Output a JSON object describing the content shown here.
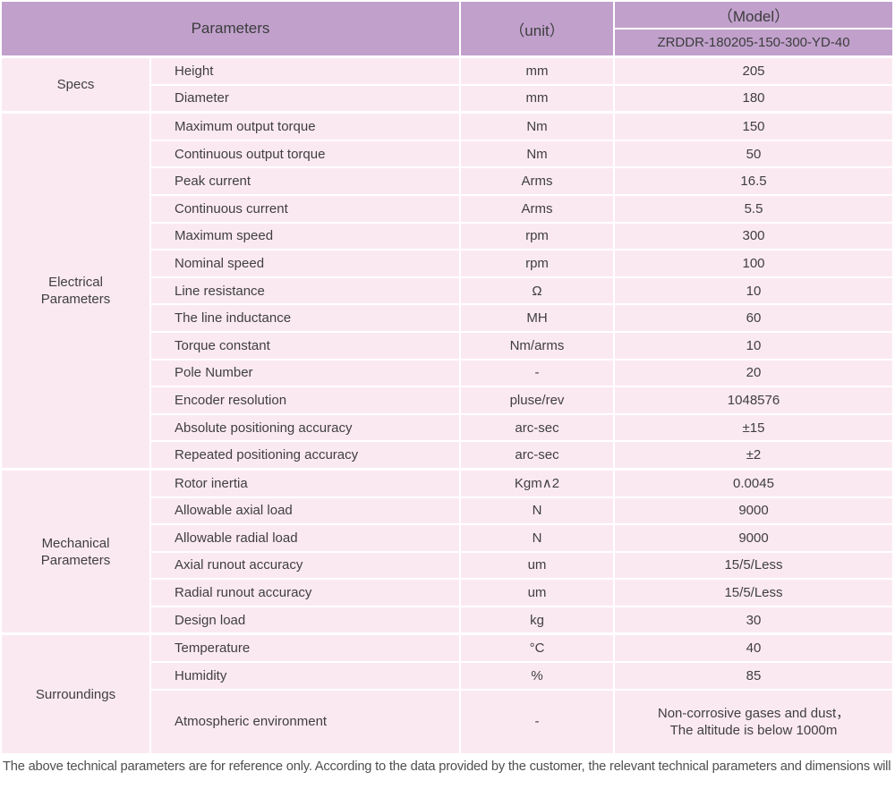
{
  "colors": {
    "header_bg": "#c1a1cc",
    "row_bg": "#fbe9f1",
    "grid": "#ffffff",
    "text": "#3f3f3f"
  },
  "header": {
    "parameters_label": "Parameters",
    "unit_label": "（unit）",
    "model_label": "（Model）",
    "model_value": "ZRDDR-180205-150-300-YD-40"
  },
  "groups": [
    {
      "name": "Specs",
      "rows": [
        {
          "param": "Height",
          "unit": "mm",
          "value": "205"
        },
        {
          "param": "Diameter",
          "unit": "mm",
          "value": "180"
        }
      ]
    },
    {
      "name": "Electrical Parameters",
      "rows": [
        {
          "param": "Maximum output torque",
          "unit": "Nm",
          "value": "150"
        },
        {
          "param": "Continuous output torque",
          "unit": "Nm",
          "value": "50"
        },
        {
          "param": "Peak current",
          "unit": "Arms",
          "value": "16.5"
        },
        {
          "param": "Continuous current",
          "unit": "Arms",
          "value": "5.5"
        },
        {
          "param": "Maximum speed",
          "unit": "rpm",
          "value": "300"
        },
        {
          "param": "Nominal speed",
          "unit": "rpm",
          "value": "100"
        },
        {
          "param": "Line resistance",
          "unit": "Ω",
          "value": "10"
        },
        {
          "param": "The line inductance",
          "unit": "MH",
          "value": "60"
        },
        {
          "param": "Torque constant",
          "unit": "Nm/arms",
          "value": "10"
        },
        {
          "param": "Pole Number",
          "unit": "-",
          "value": "20"
        },
        {
          "param": "Encoder resolution",
          "unit": "pluse/rev",
          "value": "1048576"
        },
        {
          "param": "Absolute positioning accuracy",
          "unit": "arc-sec",
          "value": "±15"
        },
        {
          "param": "Repeated positioning accuracy",
          "unit": "arc-sec",
          "value": "±2"
        }
      ]
    },
    {
      "name": "Mechanical Parameters",
      "rows": [
        {
          "param": "Rotor inertia",
          "unit": "Kgm∧2",
          "value": "0.0045"
        },
        {
          "param": "Allowable axial load",
          "unit": "N",
          "value": "9000"
        },
        {
          "param": "Allowable radial load",
          "unit": "N",
          "value": "9000"
        },
        {
          "param": "Axial runout accuracy",
          "unit": "um",
          "value": "15/5/Less"
        },
        {
          "param": "Radial runout accuracy",
          "unit": "um",
          "value": "15/5/Less"
        },
        {
          "param": "Design load",
          "unit": "kg",
          "value": "30"
        }
      ]
    },
    {
      "name": "Surroundings",
      "rows": [
        {
          "param": "Temperature",
          "unit": "°C",
          "value": "40"
        },
        {
          "param": "Humidity",
          "unit": "%",
          "value": "85"
        },
        {
          "param": "Atmospheric environment",
          "unit": "-",
          "value": "Non-corrosive gases and dust，\nThe altitude is below 1000m"
        }
      ]
    }
  ],
  "footer_note": "The above technical parameters are for reference only. According to the data provided by the customer, the relevant technical parameters and dimensions will be issued."
}
